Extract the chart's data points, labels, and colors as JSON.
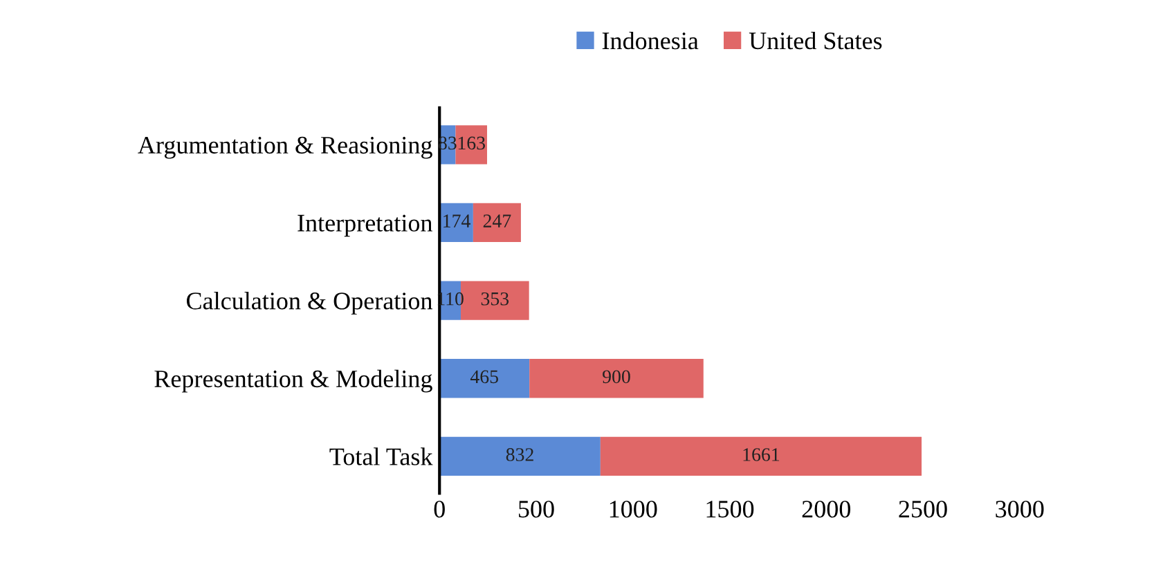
{
  "chart_data": {
    "type": "bar",
    "orientation": "horizontal",
    "stacked": true,
    "categories": [
      "Argumentation & Reasioning",
      "Interpretation",
      "Calculation & Operation",
      "Representation & Modeling",
      "Total Task"
    ],
    "series": [
      {
        "name": "Indonesia",
        "color": "#5b8ad6",
        "values": [
          83,
          174,
          110,
          465,
          832
        ]
      },
      {
        "name": "United States",
        "color": "#e06767",
        "values": [
          163,
          247,
          353,
          900,
          1661
        ]
      }
    ],
    "data_labels": true,
    "xlim": [
      0,
      3000
    ],
    "xticks": [
      0,
      500,
      1000,
      1500,
      2000,
      2500,
      3000
    ],
    "grid": false,
    "legend": "top"
  }
}
